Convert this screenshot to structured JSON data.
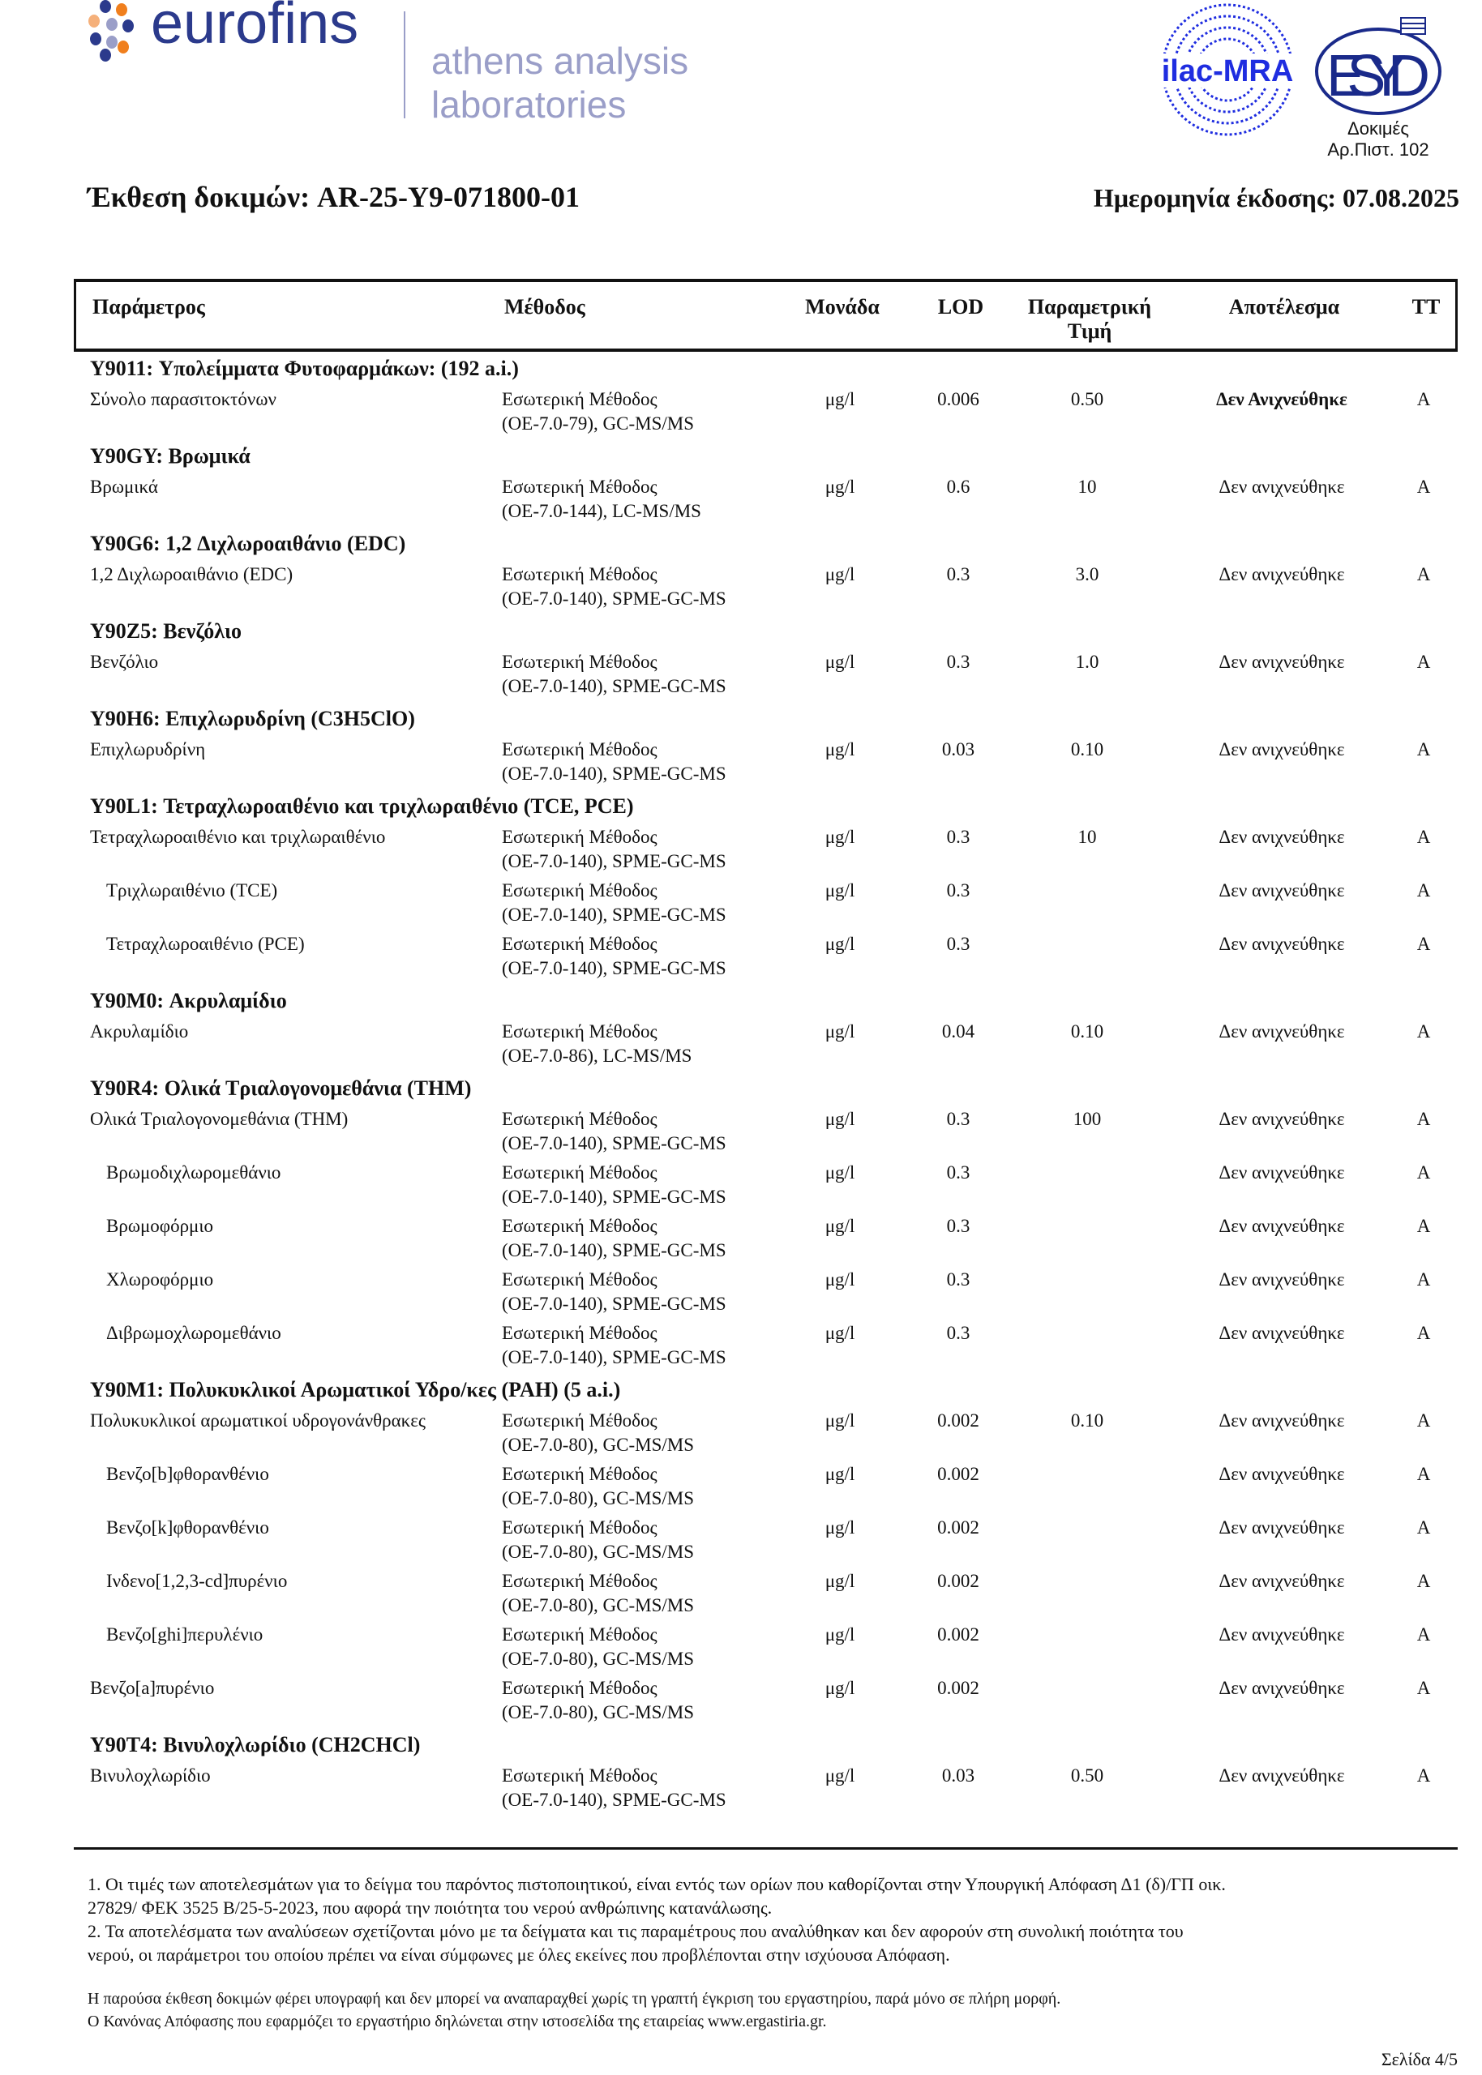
{
  "header": {
    "brand": "eurofins",
    "lab_line1": "athens analysis",
    "lab_line2": "laboratories",
    "ilac_logo": "ilac-MRA",
    "esyd_logo": "ESYD",
    "accreditation_line1": "Δοκιμές",
    "accreditation_line2": "Αρ.Πιστ. 102",
    "colors": {
      "brand_blue": "#2b3a8c",
      "lab_grey": "#9a9ec8",
      "orange": "#f07f1d",
      "ilac_blue": "#1f2de0"
    }
  },
  "report": {
    "title": "Έκθεση δοκιμών: AR-25-Y9-071800-01",
    "issue_date": "Ημερομηνία έκδοσης: 07.08.2025"
  },
  "table": {
    "columns": [
      "Παράμετρος",
      "Μέθοδος",
      "Μονάδα",
      "LOD",
      "Παραμετρική",
      "Τιμή",
      "Αποτέλεσμα",
      "ΤΤ"
    ],
    "groups": [
      {
        "title": "Y9011: Υπολείμματα Φυτοφαρμάκων: (192 a.i.)",
        "rows": [
          {
            "param": "Σύνολο παρασιτοκτόνων",
            "m1": "Εσωτερική Μέθοδος",
            "m2": "(ΟΕ-7.0-79), GC-MS/MS",
            "unit": "μg/l",
            "lod": "0.006",
            "pv": "0.50",
            "result": "Δεν Ανιχνεύθηκε",
            "tt": "A",
            "bold": true
          }
        ]
      },
      {
        "title": "Y90GY: Βρωμικά",
        "rows": [
          {
            "param": "Βρωμικά",
            "m1": "Εσωτερική Μέθοδος",
            "m2": "(ΟΕ-7.0-144), LC-MS/MS",
            "unit": "μg/l",
            "lod": "0.6",
            "pv": "10",
            "result": "Δεν ανιχνεύθηκε",
            "tt": "A"
          }
        ]
      },
      {
        "title": "Y90G6: 1,2 Διχλωροαιθάνιο (EDC)",
        "rows": [
          {
            "param": "1,2 Διχλωροαιθάνιο (EDC)",
            "m1": "Εσωτερική Μέθοδος",
            "m2": "(ΟΕ-7.0-140), SPME-GC-MS",
            "unit": "μg/l",
            "lod": "0.3",
            "pv": "3.0",
            "result": "Δεν ανιχνεύθηκε",
            "tt": "A"
          }
        ]
      },
      {
        "title": "Y90Z5: Βενζόλιο",
        "rows": [
          {
            "param": "Βενζόλιο",
            "m1": "Εσωτερική Μέθοδος",
            "m2": "(ΟΕ-7.0-140), SPME-GC-MS",
            "unit": "μg/l",
            "lod": "0.3",
            "pv": "1.0",
            "result": "Δεν ανιχνεύθηκε",
            "tt": "A"
          }
        ]
      },
      {
        "title": "Y90H6: Επιχλωρυδρίνη (C3H5ClO)",
        "rows": [
          {
            "param": "Επιχλωρυδρίνη",
            "m1": "Εσωτερική Μέθοδος",
            "m2": "(ΟΕ-7.0-140), SPME-GC-MS",
            "unit": "μg/l",
            "lod": "0.03",
            "pv": "0.10",
            "result": "Δεν ανιχνεύθηκε",
            "tt": "A"
          }
        ]
      },
      {
        "title": "Y90L1: Τετραχλωροαιθένιο και τριχλωραιθένιο (TCE, PCE)",
        "rows": [
          {
            "param": "Τετραχλωροαιθένιο και τριχλωραιθένιο",
            "m1": "Εσωτερική Μέθοδος",
            "m2": "(ΟΕ-7.0-140), SPME-GC-MS",
            "unit": "μg/l",
            "lod": "0.3",
            "pv": "10",
            "result": "Δεν ανιχνεύθηκε",
            "tt": "A"
          },
          {
            "param": "Τριχλωραιθένιο (TCE)",
            "sub": true,
            "m1": "Εσωτερική Μέθοδος",
            "m2": "(ΟΕ-7.0-140), SPME-GC-MS",
            "unit": "μg/l",
            "lod": "0.3",
            "pv": "",
            "result": "Δεν ανιχνεύθηκε",
            "tt": "A"
          },
          {
            "param": "Τετραχλωροαιθένιο (PCE)",
            "sub": true,
            "m1": "Εσωτερική Μέθοδος",
            "m2": "(ΟΕ-7.0-140), SPME-GC-MS",
            "unit": "μg/l",
            "lod": "0.3",
            "pv": "",
            "result": "Δεν ανιχνεύθηκε",
            "tt": "A"
          }
        ]
      },
      {
        "title": "Y90M0: Ακρυλαμίδιο",
        "rows": [
          {
            "param": "Ακρυλαμίδιο",
            "m1": "Εσωτερική Μέθοδος",
            "m2": "(ΟΕ-7.0-86), LC-MS/MS",
            "unit": "μg/l",
            "lod": "0.04",
            "pv": "0.10",
            "result": "Δεν ανιχνεύθηκε",
            "tt": "A"
          }
        ]
      },
      {
        "title": "Y90R4: Ολικά Τριαλογονομεθάνια (THM)",
        "rows": [
          {
            "param": "Ολικά Τριαλογονομεθάνια (THM)",
            "m1": "Εσωτερική Μέθοδος",
            "m2": "(ΟΕ-7.0-140), SPME-GC-MS",
            "unit": "μg/l",
            "lod": "0.3",
            "pv": "100",
            "result": "Δεν ανιχνεύθηκε",
            "tt": "A"
          },
          {
            "param": "Βρωμοδιχλωρομεθάνιο",
            "sub": true,
            "m1": "Εσωτερική Μέθοδος",
            "m2": "(ΟΕ-7.0-140), SPME-GC-MS",
            "unit": "μg/l",
            "lod": "0.3",
            "pv": "",
            "result": "Δεν ανιχνεύθηκε",
            "tt": "A"
          },
          {
            "param": "Βρωμοφόρμιο",
            "sub": true,
            "m1": "Εσωτερική Μέθοδος",
            "m2": "(ΟΕ-7.0-140), SPME-GC-MS",
            "unit": "μg/l",
            "lod": "0.3",
            "pv": "",
            "result": "Δεν ανιχνεύθηκε",
            "tt": "A"
          },
          {
            "param": "Χλωροφόρμιο",
            "sub": true,
            "m1": "Εσωτερική Μέθοδος",
            "m2": "(ΟΕ-7.0-140), SPME-GC-MS",
            "unit": "μg/l",
            "lod": "0.3",
            "pv": "",
            "result": "Δεν ανιχνεύθηκε",
            "tt": "A"
          },
          {
            "param": "Διβρωμοχλωρομεθάνιο",
            "sub": true,
            "m1": "Εσωτερική Μέθοδος",
            "m2": "(ΟΕ-7.0-140), SPME-GC-MS",
            "unit": "μg/l",
            "lod": "0.3",
            "pv": "",
            "result": "Δεν ανιχνεύθηκε",
            "tt": "A"
          }
        ]
      },
      {
        "title": "Y90M1: Πολυκυκλικοί Αρωματικοί Υδρο/κες (PAH) (5 a.i.)",
        "rows": [
          {
            "param": "Πολυκυκλικοί αρωματικοί  υδρογονάνθρακες",
            "m1": "Εσωτερική Μέθοδος",
            "m2": "(ΟΕ-7.0-80), GC-MS/MS",
            "unit": "μg/l",
            "lod": "0.002",
            "pv": "0.10",
            "result": "Δεν ανιχνεύθηκε",
            "tt": "A"
          },
          {
            "param": "Βενζο[b]φθορανθένιο",
            "sub": true,
            "m1": "Εσωτερική Μέθοδος",
            "m2": "(ΟΕ-7.0-80), GC-MS/MS",
            "unit": "μg/l",
            "lod": "0.002",
            "pv": "",
            "result": "Δεν ανιχνεύθηκε",
            "tt": "A"
          },
          {
            "param": "Βενζο[k]φθορανθένιο",
            "sub": true,
            "m1": "Εσωτερική Μέθοδος",
            "m2": "(ΟΕ-7.0-80), GC-MS/MS",
            "unit": "μg/l",
            "lod": "0.002",
            "pv": "",
            "result": "Δεν ανιχνεύθηκε",
            "tt": "A"
          },
          {
            "param": "Ινδενο[1,2,3-cd]πυρένιο",
            "sub": true,
            "m1": "Εσωτερική Μέθοδος",
            "m2": "(ΟΕ-7.0-80), GC-MS/MS",
            "unit": "μg/l",
            "lod": "0.002",
            "pv": "",
            "result": "Δεν ανιχνεύθηκε",
            "tt": "A"
          },
          {
            "param": "Βενζο[ghi]περυλένιο",
            "sub": true,
            "m1": "Εσωτερική Μέθοδος",
            "m2": "(ΟΕ-7.0-80), GC-MS/MS",
            "unit": "μg/l",
            "lod": "0.002",
            "pv": "",
            "result": "Δεν ανιχνεύθηκε",
            "tt": "A"
          },
          {
            "param": "Βενζο[a]πυρένιο",
            "m1": "Εσωτερική Μέθοδος",
            "m2": "(ΟΕ-7.0-80), GC-MS/MS",
            "unit": "μg/l",
            "lod": "0.002",
            "pv": "",
            "result": "Δεν ανιχνεύθηκε",
            "tt": "A"
          }
        ]
      },
      {
        "title": "Y90T4: Βινυλοχλωρίδιο (CH2CHCl)",
        "rows": [
          {
            "param": "Βινυλοχλωρίδιο",
            "m1": "Εσωτερική Μέθοδος",
            "m2": "(ΟΕ-7.0-140), SPME-GC-MS",
            "unit": "μg/l",
            "lod": "0.03",
            "pv": "0.50",
            "result": "Δεν ανιχνεύθηκε",
            "tt": "A"
          }
        ]
      }
    ]
  },
  "footnotes": {
    "n1a": "1. Οι τιμές των αποτελεσμάτων για το δείγμα του παρόντος πιστοποιητικού, είναι εντός των ορίων που καθορίζονται στην Υπουργική Απόφαση Δ1 (δ)/ΓΠ οικ.",
    "n1b": "27829/ ΦΕΚ 3525 Β/25-5-2023, που αφορά την ποιότητα του νερού ανθρώπινης κατανάλωσης.",
    "n2a": "2. Τα αποτελέσματα των αναλύσεων σχετίζονται μόνο με τα δείγματα και τις παραμέτρους που αναλύθηκαν και δεν αφορούν στη συνολική ποιότητα του",
    "n2b": "νερού, οι παράμετροι του οποίου πρέπει να είναι σύμφωνες με όλες εκείνες που προβλέπονται στην ισχύουσα Απόφαση.",
    "legal1": "Η παρούσα έκθεση δοκιμών φέρει υπογραφή και δεν μπορεί να αναπαραχθεί χωρίς τη γραπτή έγκριση του εργαστηρίου, παρά μόνο σε πλήρη μορφή.",
    "legal2": "Ο Κανόνας Απόφασης που εφαρμόζει το εργαστήριο δηλώνεται στην ιστοσελίδα της εταιρείας www.ergastiria.gr.",
    "page": "Σελίδα  4/5"
  }
}
